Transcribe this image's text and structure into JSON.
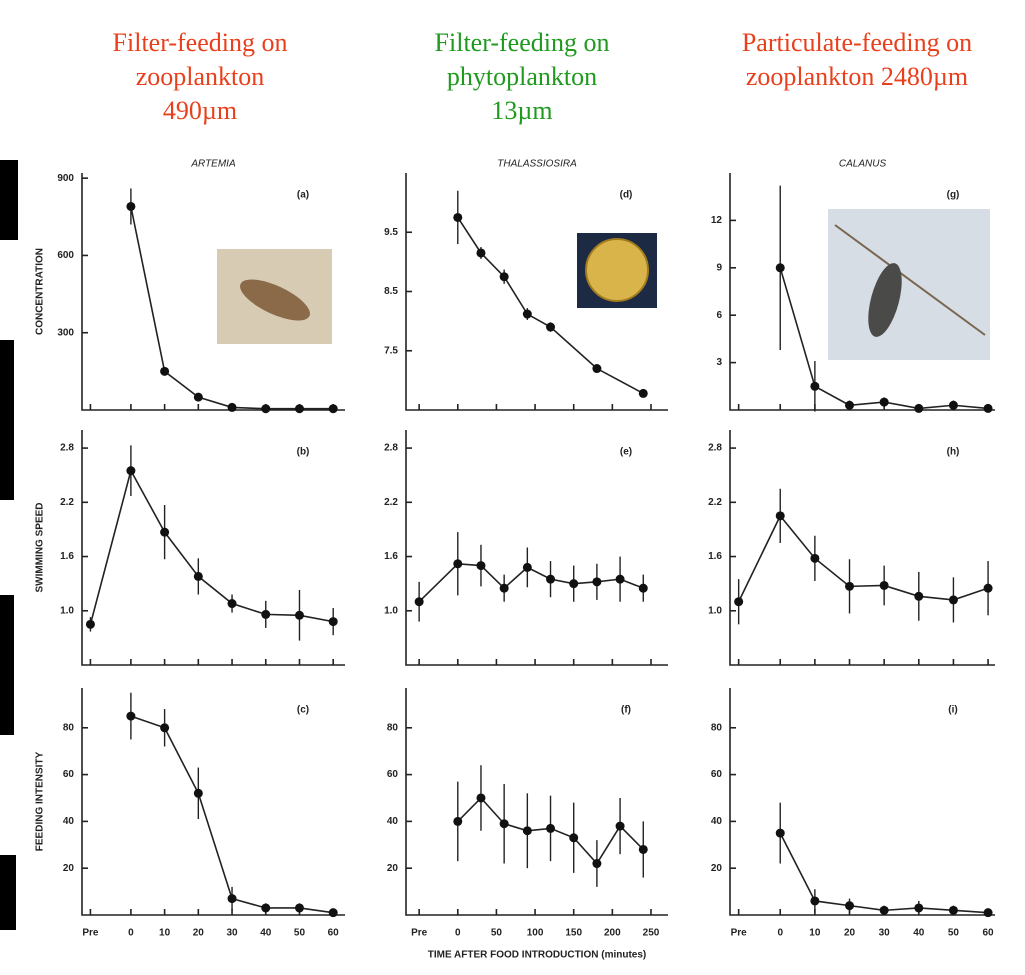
{
  "headers": [
    {
      "lines": [
        "Filter-feeding  on",
        "zooplankton",
        "490µm"
      ],
      "color": "#e8401c"
    },
    {
      "lines": [
        "Filter-feeding  on",
        "phytoplankton",
        "13µm"
      ],
      "color": "#1f9a1f"
    },
    {
      "lines": [
        "Particulate-feeding  on",
        "zooplankton  2480µm"
      ],
      "color": "#e8401c"
    }
  ],
  "chart_data": [
    {
      "type": "line",
      "title": "ARTEMIA",
      "panel": "(a)",
      "ylabel": "CONCENTRATION",
      "x": [
        0,
        10,
        20,
        30,
        40,
        50,
        60
      ],
      "values": [
        790,
        150,
        50,
        10,
        5,
        5,
        5
      ],
      "errors": [
        70,
        15,
        10,
        4,
        3,
        3,
        3
      ],
      "xlim": [
        -14.5,
        63.5
      ],
      "ylim": [
        0,
        920
      ],
      "yticks": [
        300,
        600,
        900
      ]
    },
    {
      "type": "line",
      "panel": "(b)",
      "ylabel": "SWIMMING SPEED",
      "x": [
        -12,
        0,
        10,
        20,
        30,
        40,
        50,
        60
      ],
      "values": [
        0.85,
        2.55,
        1.87,
        1.38,
        1.08,
        0.96,
        0.95,
        0.88
      ],
      "errors": [
        0.08,
        0.28,
        0.3,
        0.2,
        0.1,
        0.15,
        0.28,
        0.15
      ],
      "xlim": [
        -14.5,
        63.5
      ],
      "ylim": [
        0.4,
        3.0
      ],
      "yticks": [
        {
          "value": 1.0,
          "label": "1.0"
        },
        1.6,
        2.2,
        2.8
      ]
    },
    {
      "type": "line",
      "panel": "(c)",
      "ylabel": "FEEDING INTENSITY",
      "x": [
        0,
        10,
        20,
        30,
        40,
        50,
        60
      ],
      "values": [
        85,
        80,
        52,
        7,
        3,
        3,
        1
      ],
      "errors": [
        10,
        8,
        11,
        5,
        2,
        2,
        1
      ],
      "xlim": [
        -14.5,
        63.5
      ],
      "ylim": [
        0,
        97
      ],
      "yticks": [
        20,
        40,
        60,
        80
      ],
      "xticks": [
        {
          "value": -12,
          "label": "Pre"
        },
        0,
        10,
        20,
        30,
        40,
        50,
        60
      ]
    },
    {
      "type": "line",
      "title": "THALASSIOSIRA",
      "panel": "(d)",
      "x": [
        0,
        30,
        60,
        90,
        120,
        180,
        240
      ],
      "values": [
        9.75,
        9.15,
        8.75,
        8.12,
        7.9,
        7.2,
        6.78
      ],
      "errors": [
        0.45,
        0.1,
        0.12,
        0.1,
        0.08,
        0.05,
        0.05
      ],
      "xlim": [
        -67,
        272
      ],
      "ylim": [
        6.5,
        10.5
      ],
      "yticks": [
        7.5,
        8.5,
        9.5
      ]
    },
    {
      "type": "line",
      "panel": "(e)",
      "x": [
        -50,
        0,
        30,
        60,
        90,
        120,
        150,
        180,
        210,
        240
      ],
      "values": [
        1.1,
        1.52,
        1.5,
        1.25,
        1.48,
        1.35,
        1.3,
        1.32,
        1.35,
        1.25
      ],
      "errors": [
        0.22,
        0.35,
        0.23,
        0.15,
        0.22,
        0.2,
        0.2,
        0.2,
        0.25,
        0.15
      ],
      "xlim": [
        -67,
        272
      ],
      "ylim": [
        0.4,
        3.0
      ],
      "yticks": [
        {
          "value": 1.0,
          "label": "1.0"
        },
        1.6,
        2.2,
        2.8
      ]
    },
    {
      "type": "line",
      "panel": "(f)",
      "xlabel": "TIME AFTER FOOD INTRODUCTION (minutes)",
      "x": [
        0,
        30,
        60,
        90,
        120,
        150,
        180,
        210,
        240
      ],
      "values": [
        40,
        50,
        39,
        36,
        37,
        33,
        22,
        38,
        28
      ],
      "errors": [
        17,
        14,
        17,
        16,
        14,
        15,
        10,
        12,
        12
      ],
      "xlim": [
        -67,
        272
      ],
      "ylim": [
        0,
        97
      ],
      "yticks": [
        20,
        40,
        60,
        80
      ],
      "xticks": [
        {
          "value": -50,
          "label": "Pre"
        },
        0,
        50,
        100,
        150,
        200,
        250
      ]
    },
    {
      "type": "line",
      "title": "CALANUS",
      "panel": "(g)",
      "x": [
        0,
        10,
        20,
        30,
        40,
        50,
        60
      ],
      "values": [
        9,
        1.5,
        0.3,
        0.5,
        0.1,
        0.3,
        0.1
      ],
      "errors": [
        5.2,
        1.6,
        0.3,
        0.3,
        0.2,
        0.3,
        0.2
      ],
      "xlim": [
        -14.5,
        62
      ],
      "ylim": [
        0,
        15
      ],
      "yticks": [
        3,
        6,
        9,
        12
      ]
    },
    {
      "type": "line",
      "panel": "(h)",
      "x": [
        -12,
        0,
        10,
        20,
        30,
        40,
        50,
        60
      ],
      "values": [
        1.1,
        2.05,
        1.58,
        1.27,
        1.28,
        1.16,
        1.12,
        1.25
      ],
      "errors": [
        0.25,
        0.3,
        0.25,
        0.3,
        0.22,
        0.27,
        0.25,
        0.3
      ],
      "xlim": [
        -14.5,
        62
      ],
      "ylim": [
        0.4,
        3.0
      ],
      "yticks": [
        {
          "value": 1.0,
          "label": "1.0"
        },
        1.6,
        2.2,
        2.8
      ]
    },
    {
      "type": "line",
      "panel": "(i)",
      "x": [
        0,
        10,
        20,
        30,
        40,
        50,
        60
      ],
      "values": [
        35,
        6,
        4,
        2,
        3,
        2,
        1
      ],
      "errors": [
        13,
        5,
        3,
        2,
        3,
        2,
        1
      ],
      "xlim": [
        -14.5,
        62
      ],
      "ylim": [
        0,
        97
      ],
      "yticks": [
        20,
        40,
        60,
        80
      ],
      "xticks": [
        {
          "value": -12,
          "label": "Pre"
        },
        0,
        10,
        20,
        30,
        40,
        50,
        60
      ]
    }
  ]
}
